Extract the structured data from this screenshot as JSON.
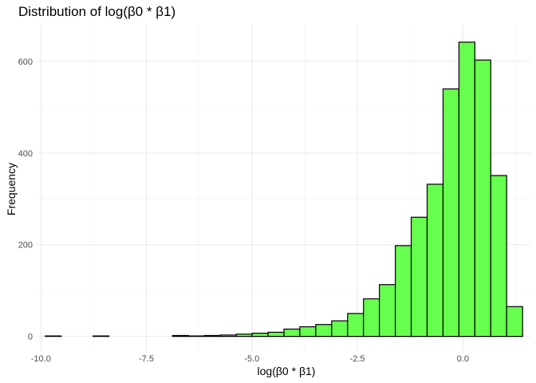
{
  "chart_data": {
    "type": "bar",
    "title": "Distribution of log(β0 * β1)",
    "xlabel": "log(β0 * β1)",
    "ylabel": "Frequency",
    "xlim": [
      -10.1,
      1.6
    ],
    "ylim": [
      -32,
      680
    ],
    "x_ticks": [
      -10.0,
      -7.5,
      -5.0,
      -2.5,
      0.0
    ],
    "x_tick_labels": [
      "-10.0",
      "-7.5",
      "-5.0",
      "-2.5",
      "0.0"
    ],
    "y_ticks": [
      0,
      200,
      400,
      600
    ],
    "y_tick_labels": [
      "0",
      "200",
      "400",
      "600"
    ],
    "grid": true,
    "bar_fill": "#66ff4d",
    "bar_stroke": "#000000",
    "bin_width": 0.377,
    "bins": [
      {
        "x": -9.707,
        "count": 1
      },
      {
        "x": -9.33,
        "count": 0
      },
      {
        "x": -8.953,
        "count": 0
      },
      {
        "x": -8.576,
        "count": 1
      },
      {
        "x": -8.199,
        "count": 0
      },
      {
        "x": -7.822,
        "count": 0
      },
      {
        "x": -7.445,
        "count": 0
      },
      {
        "x": -7.068,
        "count": 0
      },
      {
        "x": -6.691,
        "count": 2
      },
      {
        "x": -6.314,
        "count": 1
      },
      {
        "x": -5.937,
        "count": 2
      },
      {
        "x": -5.56,
        "count": 3
      },
      {
        "x": -5.183,
        "count": 5
      },
      {
        "x": -4.806,
        "count": 7
      },
      {
        "x": -4.429,
        "count": 9
      },
      {
        "x": -4.052,
        "count": 16
      },
      {
        "x": -3.675,
        "count": 21
      },
      {
        "x": -3.298,
        "count": 26
      },
      {
        "x": -2.921,
        "count": 34
      },
      {
        "x": -2.544,
        "count": 50
      },
      {
        "x": -2.167,
        "count": 82
      },
      {
        "x": -1.79,
        "count": 113
      },
      {
        "x": -1.413,
        "count": 198
      },
      {
        "x": -1.036,
        "count": 260
      },
      {
        "x": -0.659,
        "count": 332
      },
      {
        "x": -0.282,
        "count": 540
      },
      {
        "x": 0.095,
        "count": 642
      },
      {
        "x": 0.472,
        "count": 603
      },
      {
        "x": 0.849,
        "count": 351
      },
      {
        "x": 1.226,
        "count": 65
      }
    ]
  }
}
